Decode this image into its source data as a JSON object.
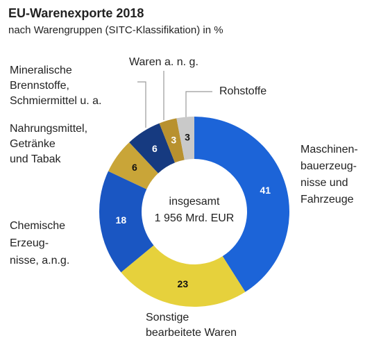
{
  "chart_data": {
    "type": "donut",
    "title": "EU-Warenexporte 2018",
    "subtitle": "nach Warengruppen (SITC-Klassifikation) in %",
    "center_label": [
      "insgesamt",
      "1 956 Mrd. EUR"
    ],
    "categories": [
      [
        "Maschinen-",
        "bauerzeug-",
        "nisse und",
        "Fahrzeuge"
      ],
      [
        "Sonstige",
        "bearbeitete Waren"
      ],
      [
        "Chemische",
        "Erzeug-",
        "nisse, a.n.g."
      ],
      [
        "Nahrungsmittel,",
        "Getränke",
        "und Tabak"
      ],
      [
        "Mineralische",
        "Brennstoffe,",
        "Schmiermittel u. a."
      ],
      [
        "Waren a. n. g."
      ],
      [
        "Rohstoffe"
      ]
    ],
    "values": [
      41,
      23,
      18,
      6,
      6,
      3,
      3
    ],
    "colors": [
      "#1c64d8",
      "#e6d13c",
      "#1a56c2",
      "#c9a538",
      "#163a80",
      "#b8912f",
      "#c9c9c9"
    ],
    "label_colors": [
      "#ffffff",
      "#111111",
      "#ffffff",
      "#111111",
      "#ffffff",
      "#ffffff",
      "#111111"
    ]
  }
}
